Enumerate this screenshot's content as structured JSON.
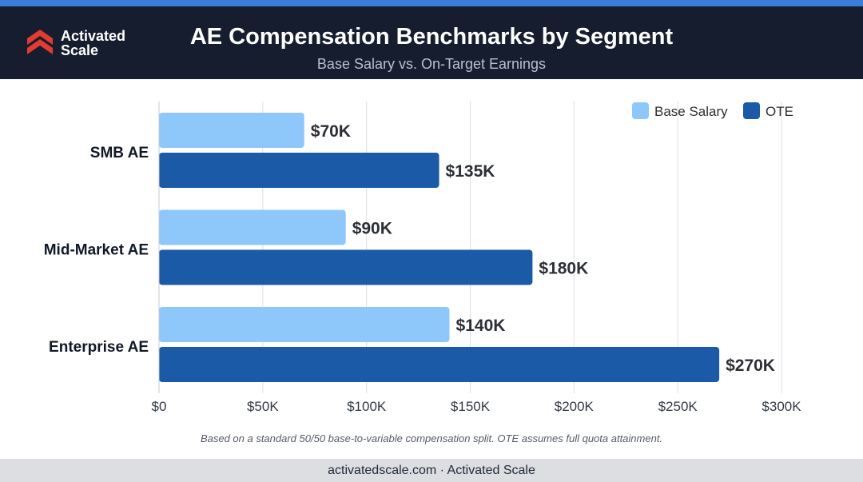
{
  "brand": {
    "name_line1": "Activated",
    "name_line2": "Scale"
  },
  "header": {
    "title": "AE Compensation Benchmarks by Segment",
    "subtitle": "Base Salary vs. On-Target Earnings"
  },
  "colors": {
    "header_bg": "#151d2e",
    "base": "#8ec8fb",
    "ote": "#1b5aa6",
    "accent": "#e23b32"
  },
  "chart_data": {
    "type": "bar",
    "orientation": "horizontal",
    "categories": [
      "SMB AE",
      "Mid-Market AE",
      "Enterprise AE"
    ],
    "series": [
      {
        "name": "Base Salary",
        "values": [
          70,
          90,
          140
        ],
        "labels": [
          "$70K",
          "$90K",
          "$140K"
        ],
        "color": "#8ec8fb"
      },
      {
        "name": "OTE",
        "values": [
          135,
          180,
          270
        ],
        "labels": [
          "$135K",
          "$180K",
          "$270K"
        ],
        "color": "#1b5aa6"
      }
    ],
    "xlim": [
      0,
      300
    ],
    "xticks": [
      0,
      50,
      100,
      150,
      200,
      250,
      300
    ],
    "xtick_labels": [
      "$0",
      "$50K",
      "$100K",
      "$150K",
      "$200K",
      "$250K",
      "$300K"
    ],
    "grid": true,
    "legend_position": "top-right"
  },
  "footnote": "Based on a standard 50/50 base-to-variable compensation split. OTE assumes full quota attainment.",
  "footer": "activatedscale.com · Activated Scale"
}
